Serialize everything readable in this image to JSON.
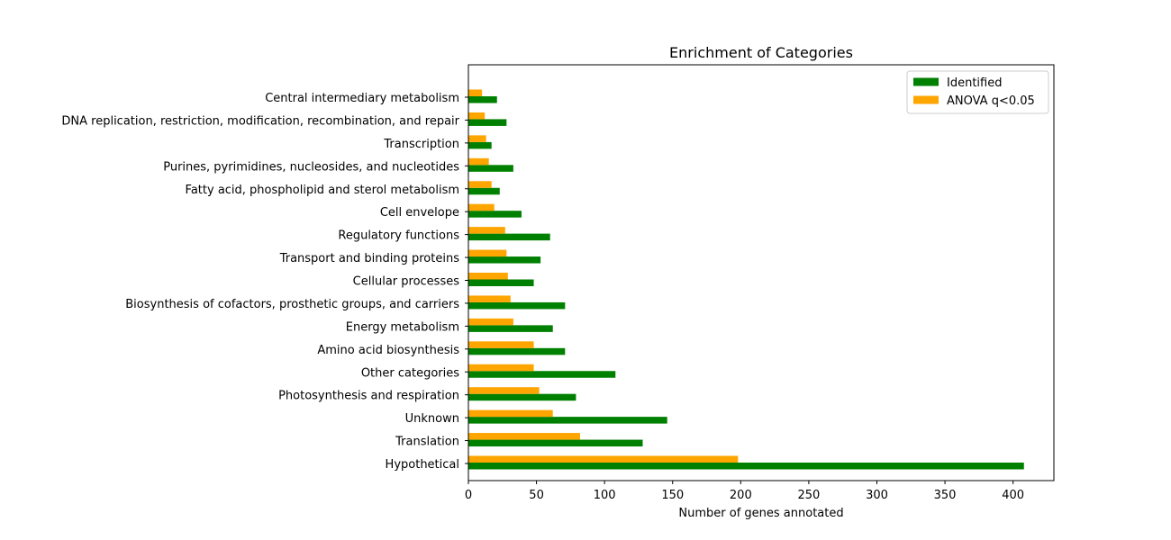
{
  "chart_data": {
    "type": "bar",
    "orientation": "horizontal",
    "title": "Enrichment of Categories",
    "xlabel": "Number of genes annotated",
    "ylabel": "",
    "xlim": [
      0,
      430
    ],
    "xticks": [
      0,
      50,
      100,
      150,
      200,
      250,
      300,
      350,
      400
    ],
    "grid": false,
    "legend_position": "top-right",
    "categories": [
      "Hypothetical",
      "Translation",
      "Unknown",
      "Photosynthesis and respiration",
      "Other categories",
      "Amino acid biosynthesis",
      "Energy metabolism",
      "Biosynthesis of cofactors, prosthetic groups, and carriers",
      "Cellular processes",
      "Transport and binding proteins",
      "Regulatory functions",
      "Cell envelope",
      "Fatty acid, phospholipid and sterol metabolism",
      "Purines, pyrimidines, nucleosides, and nucleotides",
      "Transcription",
      "DNA replication, restriction, modification, recombination, and repair",
      "Central intermediary metabolism"
    ],
    "series": [
      {
        "name": "Identified",
        "color": "#008000",
        "values": [
          408,
          128,
          146,
          79,
          108,
          71,
          62,
          71,
          48,
          53,
          60,
          39,
          23,
          33,
          17,
          28,
          21
        ]
      },
      {
        "name": "ANOVA q<0.05",
        "color": "#ffa500",
        "values": [
          198,
          82,
          62,
          52,
          48,
          48,
          33,
          31,
          29,
          28,
          27,
          19,
          17,
          15,
          13,
          12,
          10
        ]
      }
    ]
  }
}
